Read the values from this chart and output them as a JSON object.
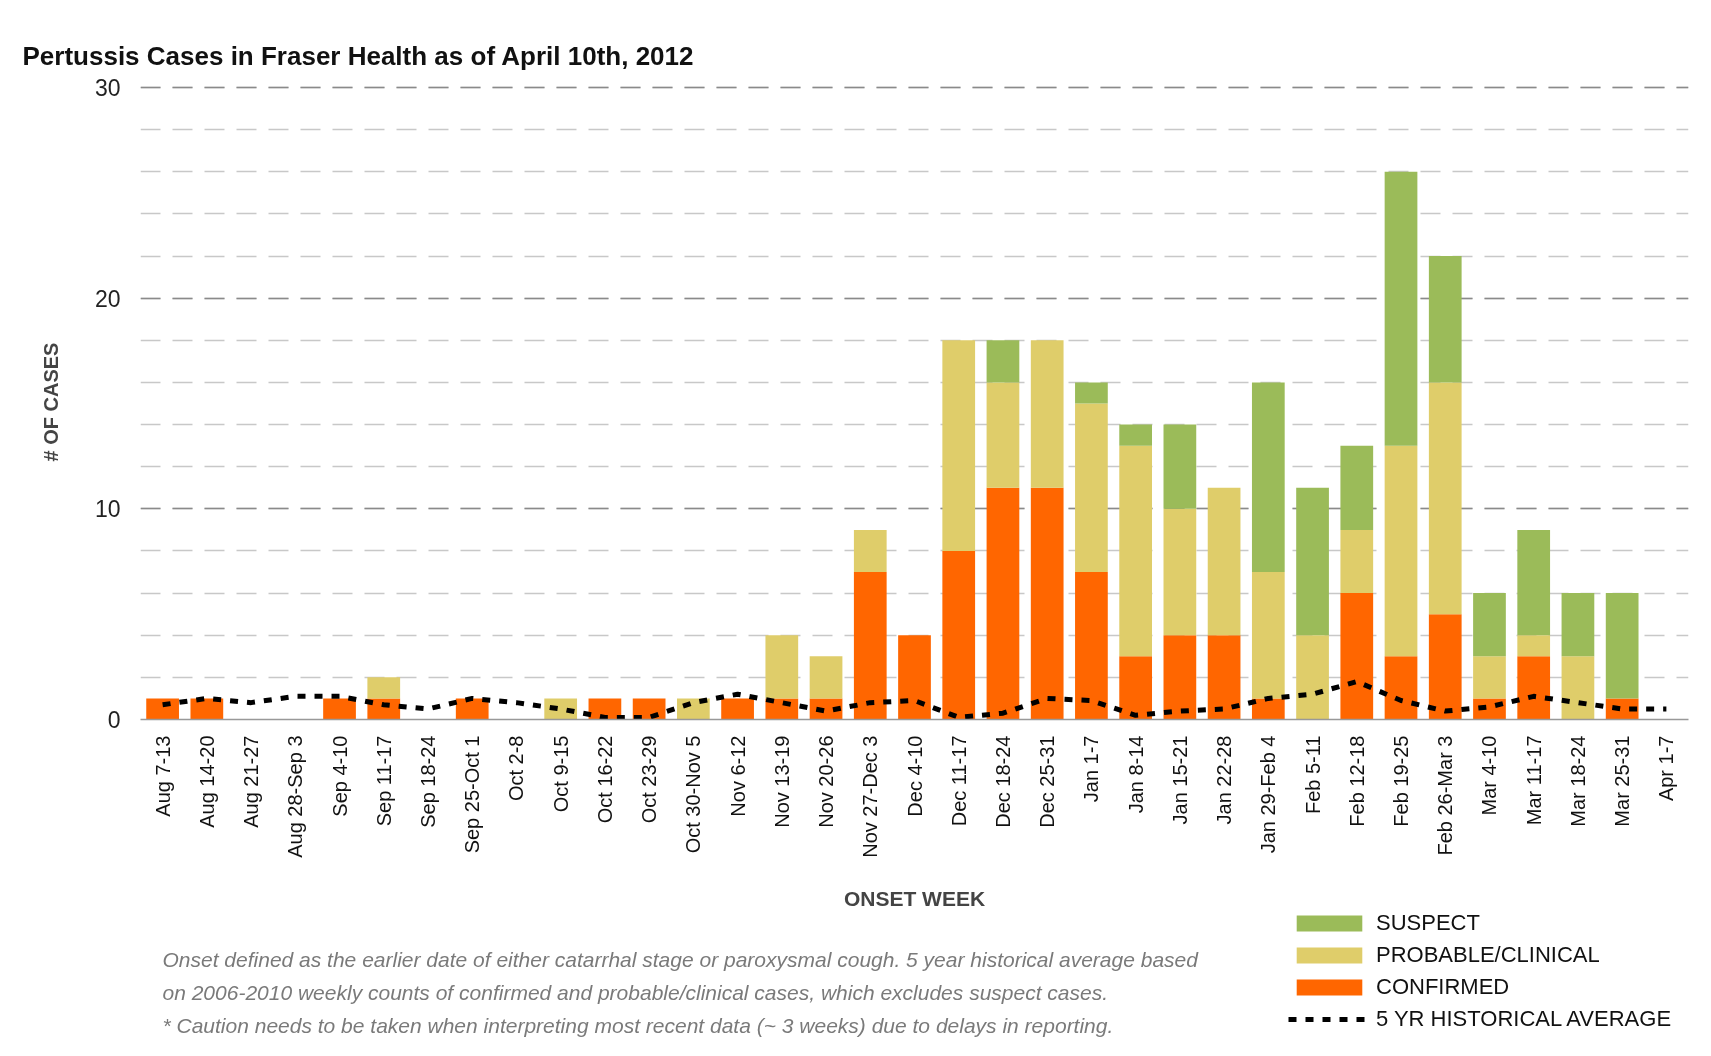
{
  "chart_data": {
    "type": "bar",
    "title": "Pertussis Cases in Fraser Health as of April 10th, 2012",
    "xlabel": "ONSET WEEK",
    "ylabel": "# OF CASES",
    "annotations": [
      "Onset defined as the earlier date of either catarrhal stage or paroxysmal cough. 5 year historical average based on 2006-2010 weekly counts of confirmed and probable/clinical cases, which excludes suspect cases.",
      "* Caution needs to be taken when interpreting most recent data (~ 3 weeks) due to delays in reporting."
    ],
    "categories": [
      "Aug 7-13",
      "Aug 14-20",
      "Aug 21-27",
      "Aug 28-Sep 3",
      "Sep 4-10",
      "Sep 11-17",
      "Sep 18-24",
      "Sep 25-Oct 1",
      "Oct 2-8",
      "Oct 9-15",
      "Oct 16-22",
      "Oct 23-29",
      "Oct 30-Nov 5",
      "Nov 6-12",
      "Nov 13-19",
      "Nov 20-26",
      "Nov 27-Dec 3",
      "Dec 4-10",
      "Dec 11-17",
      "Dec 18-24",
      "Dec 25-31",
      "Jan 1-7",
      "Jan 8-14",
      "Jan 15-21",
      "Jan 22-28",
      "Jan 29-Feb 4",
      "Feb 5-11",
      "Feb 12-18",
      "Feb 19-25",
      "Feb 26-Mar 3",
      "Mar 4-10",
      "Mar 11-17",
      "Mar 18-24",
      "Mar 25-31",
      "Apr 1-7"
    ],
    "series": [
      {
        "name": "CONFIRMED",
        "color": "#ff6600",
        "values": [
          1,
          1,
          0,
          0,
          1,
          1,
          0,
          1,
          0,
          0,
          1,
          1,
          0,
          1,
          1,
          1,
          7,
          4,
          8,
          11,
          11,
          7,
          3,
          4,
          4,
          1,
          0,
          6,
          3,
          5,
          1,
          3,
          0,
          1,
          0
        ]
      },
      {
        "name": "PROBABLE/CLINICAL",
        "color": "#dfcd6a",
        "values": [
          0,
          0,
          0,
          0,
          0,
          1,
          0,
          0,
          0,
          1,
          0,
          0,
          1,
          0,
          3,
          2,
          2,
          0,
          10,
          5,
          7,
          8,
          10,
          6,
          7,
          6,
          4,
          3,
          10,
          11,
          2,
          1,
          3,
          0,
          0
        ]
      },
      {
        "name": "SUSPECT",
        "color": "#9bbb59",
        "values": [
          0,
          0,
          0,
          0,
          0,
          0,
          0,
          0,
          0,
          0,
          0,
          0,
          0,
          0,
          0,
          0,
          0,
          0,
          0,
          2,
          0,
          1,
          1,
          4,
          0,
          9,
          7,
          4,
          13,
          6,
          3,
          5,
          3,
          5,
          0
        ]
      },
      {
        "name": "5 YR HISTORICAL AVERAGE",
        "type": "line",
        "color": "#000000",
        "line_style": "dashed",
        "values": [
          0.7,
          1.0,
          0.8,
          1.1,
          1.1,
          0.7,
          0.5,
          1.0,
          0.8,
          0.5,
          0.1,
          0.1,
          0.8,
          1.2,
          0.8,
          0.4,
          0.8,
          0.9,
          0.1,
          0.3,
          1.0,
          0.9,
          0.2,
          0.4,
          0.5,
          1.0,
          1.2,
          1.8,
          0.9,
          0.4,
          0.6,
          1.1,
          0.8,
          0.5,
          0.5
        ]
      }
    ],
    "stacked": true,
    "ylim": [
      0,
      30
    ],
    "yticks": [
      0,
      {
        "value": 2,
        "label": null
      },
      {
        "value": 4,
        "label": null
      },
      {
        "value": 6,
        "label": null
      },
      {
        "value": 8,
        "label": null
      },
      10,
      {
        "value": 12,
        "label": null
      },
      {
        "value": 14,
        "label": null
      },
      {
        "value": 16,
        "label": null
      },
      {
        "value": 18,
        "label": null
      },
      20,
      {
        "value": 22,
        "label": null
      },
      {
        "value": 24,
        "label": null
      },
      {
        "value": 26,
        "label": null
      },
      {
        "value": 28,
        "label": null
      },
      30
    ],
    "grid": "y",
    "legend": "bottom right"
  }
}
